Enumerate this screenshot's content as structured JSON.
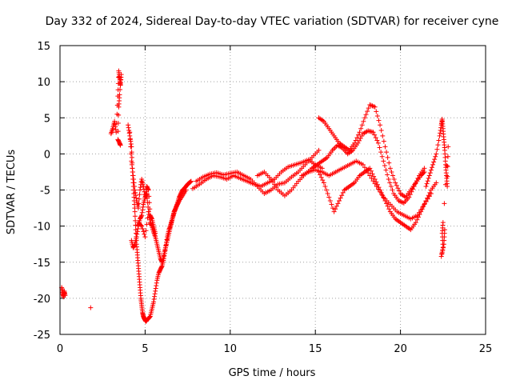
{
  "chart_data": {
    "type": "scatter",
    "title": "Day 332 of 2024, Sidereal Day-to-day VTEC variation (SDTVAR) for receiver cyne",
    "xlabel": "GPS time / hours",
    "ylabel": "SDTVAR / TECUs",
    "xlim": [
      0,
      25
    ],
    "ylim": [
      -25,
      15
    ],
    "xticks": [
      "0",
      "5",
      "10",
      "15",
      "20",
      "25"
    ],
    "yticks": [
      "15",
      "10",
      "5",
      "0",
      "-5",
      "-10",
      "-15",
      "-20",
      "-25"
    ],
    "grid": true,
    "marker": "+",
    "color": "#ff0000",
    "series": [
      {
        "name": "early",
        "x": [
          0.1,
          0.15,
          0.2,
          0.25,
          0.3,
          1.8
        ],
        "y": [
          -18.5,
          -19.2,
          -19.8,
          -19.0,
          -19.6,
          -21.3
        ]
      },
      {
        "name": "spike",
        "x": [
          3.0,
          3.1,
          3.2,
          3.3,
          3.4,
          3.45,
          3.5,
          3.55,
          3.6,
          3.5,
          3.45,
          3.4,
          3.5,
          3.55
        ],
        "y": [
          2.8,
          3.5,
          4.5,
          3.0,
          8.0,
          11.5,
          10.5,
          9.5,
          11.0,
          8.2,
          6.5,
          2.0,
          1.5,
          1.2
        ]
      },
      {
        "name": "dip",
        "x": [
          4.0,
          4.1,
          4.2,
          4.25,
          4.3,
          4.35,
          4.4,
          4.45,
          4.5,
          4.55,
          4.6,
          4.65,
          4.7,
          4.75,
          4.8,
          4.85,
          4.9,
          4.95,
          5.0,
          5.05,
          5.1,
          5.2,
          5.3,
          5.4,
          5.5,
          5.6,
          5.7,
          5.8,
          5.9,
          6.0,
          6.1,
          6.2,
          6.3,
          6.4,
          6.5,
          6.6,
          6.7,
          6.8,
          6.9,
          7.0,
          7.1,
          7.2,
          7.3,
          7.4,
          7.5,
          7.6,
          7.7
        ],
        "y": [
          4.0,
          2.5,
          1.0,
          -2.0,
          -4.0,
          -6.0,
          -8.0,
          -10.5,
          -12.5,
          -14.0,
          -15.5,
          -17.0,
          -18.5,
          -20.0,
          -21.0,
          -22.0,
          -22.5,
          -22.8,
          -23.0,
          -23.2,
          -23.0,
          -22.8,
          -22.5,
          -21.5,
          -20.5,
          -19.0,
          -17.5,
          -16.5,
          -16.0,
          -15.5,
          -14.5,
          -13.0,
          -11.5,
          -10.5,
          -9.8,
          -9.0,
          -8.2,
          -7.5,
          -6.8,
          -6.0,
          -5.5,
          -5.0,
          -4.8,
          -4.5,
          -4.2,
          -4.0,
          -3.8
        ]
      },
      {
        "name": "dip-upper-branch",
        "x": [
          4.2,
          4.3,
          4.4,
          4.5,
          4.6,
          4.7,
          4.8,
          4.9,
          5.0,
          5.1,
          5.2,
          5.3,
          5.4,
          5.5,
          5.6,
          5.7,
          5.8,
          5.9,
          6.0,
          6.1,
          6.2,
          6.3,
          6.4,
          6.5,
          6.6,
          6.7,
          6.8,
          6.9,
          7.0,
          7.2,
          7.4
        ],
        "y": [
          -12.0,
          -13.0,
          -12.5,
          -11.5,
          -10.0,
          -9.0,
          -8.5,
          -7.0,
          -6.0,
          -5.5,
          -8.0,
          -9.5,
          -10.0,
          -10.8,
          -11.5,
          -12.5,
          -13.5,
          -14.5,
          -15.0,
          -14.0,
          -13.0,
          -12.0,
          -11.0,
          -10.0,
          -9.0,
          -8.0,
          -7.5,
          -7.0,
          -6.5,
          -5.8,
          -5.0
        ]
      },
      {
        "name": "scatter-near-4h",
        "x": [
          4.1,
          4.2,
          4.3,
          4.4,
          4.5,
          4.6,
          4.7,
          4.8,
          4.9,
          5.0,
          5.1,
          5.2,
          5.3,
          5.4,
          5.5,
          5.6,
          4.6,
          4.8,
          5.0,
          5.2
        ],
        "y": [
          3.0,
          -1.0,
          -3.0,
          -5.0,
          -6.5,
          -7.5,
          -5.0,
          -3.5,
          -4.5,
          -6.0,
          -4.5,
          -5.0,
          -8.5,
          -9.0,
          -10.0,
          -11.0,
          -9.5,
          -10.0,
          -11.5,
          -8.0
        ]
      },
      {
        "name": "mid-day-band-a",
        "x": [
          7.8,
          8.2,
          8.6,
          9.0,
          9.4,
          9.8,
          10.2,
          10.6,
          11.0,
          11.4,
          11.8,
          12.2,
          12.6,
          13.0,
          13.4,
          13.8,
          14.2,
          14.6,
          15.0,
          15.4
        ],
        "y": [
          -4.8,
          -4.2,
          -3.5,
          -3.0,
          -3.2,
          -3.5,
          -3.0,
          -3.4,
          -3.8,
          -4.2,
          -4.5,
          -4.0,
          -3.5,
          -2.5,
          -1.8,
          -1.5,
          -1.2,
          -0.8,
          -1.5,
          -2.0
        ]
      },
      {
        "name": "mid-day-band-b",
        "x": [
          8.0,
          8.4,
          8.8,
          9.2,
          9.6,
          10.0,
          10.4,
          10.8,
          11.2,
          11.6,
          12.0,
          12.4,
          12.8,
          13.2,
          13.6,
          14.0,
          14.4,
          14.8,
          15.2
        ],
        "y": [
          -3.8,
          -3.2,
          -2.8,
          -2.6,
          -2.9,
          -2.7,
          -2.5,
          -3.0,
          -3.5,
          -4.5,
          -5.5,
          -5.0,
          -4.2,
          -4.0,
          -3.2,
          -2.5,
          -1.5,
          -0.5,
          0.5
        ]
      },
      {
        "name": "mid-day-band-c",
        "x": [
          11.6,
          12.0,
          12.4,
          12.8,
          13.2,
          13.6,
          14.0,
          14.4,
          14.8
        ],
        "y": [
          -3.0,
          -2.5,
          -3.5,
          -5.0,
          -5.8,
          -5.0,
          -3.8,
          -2.8,
          -2.0
        ]
      },
      {
        "name": "afternoon-rise",
        "x": [
          15.2,
          15.5,
          15.8,
          16.1,
          16.4,
          16.7,
          17.0,
          17.3,
          17.6,
          17.9,
          18.2,
          18.5,
          18.8,
          19.1,
          19.4,
          19.7,
          20.0,
          20.3,
          20.6,
          20.9,
          21.2,
          21.4
        ],
        "y": [
          5.0,
          4.5,
          3.5,
          2.5,
          1.5,
          1.0,
          0.5,
          1.5,
          3.0,
          5.0,
          6.8,
          6.5,
          4.0,
          1.0,
          -2.0,
          -4.0,
          -5.5,
          -6.0,
          -5.0,
          -4.0,
          -3.0,
          -2.5
        ]
      },
      {
        "name": "afternoon-band-2",
        "x": [
          14.8,
          15.1,
          15.4,
          15.7,
          16.0,
          16.3,
          16.6,
          16.9,
          17.2,
          17.5,
          17.8,
          18.1,
          18.4,
          18.7,
          19.0,
          19.3,
          19.6,
          19.9,
          20.2,
          20.5,
          20.8,
          21.1,
          21.4
        ],
        "y": [
          -2.0,
          -1.5,
          -1.0,
          -0.5,
          0.5,
          1.2,
          0.8,
          0.0,
          0.5,
          1.5,
          2.8,
          3.2,
          3.0,
          1.5,
          -1.0,
          -3.5,
          -5.5,
          -6.5,
          -6.8,
          -6.0,
          -4.5,
          -3.0,
          -2.0
        ]
      },
      {
        "name": "afternoon-band-3",
        "x": [
          14.2,
          14.6,
          15.0,
          15.4,
          15.8,
          16.2,
          16.6,
          17.0,
          17.4,
          17.8,
          18.2,
          18.6,
          19.0,
          19.4,
          19.8,
          20.2,
          20.6,
          21.0,
          21.4,
          21.8
        ],
        "y": [
          -3.0,
          -2.5,
          -2.2,
          -2.5,
          -3.0,
          -2.5,
          -2.0,
          -1.5,
          -1.0,
          -1.5,
          -3.0,
          -4.5,
          -6.0,
          -7.0,
          -8.0,
          -8.5,
          -9.0,
          -8.5,
          -7.0,
          -5.5
        ]
      },
      {
        "name": "afternoon-band-4",
        "x": [
          15.2,
          15.5,
          15.8,
          16.1,
          16.4,
          16.7,
          17.0,
          17.3,
          17.6,
          17.9,
          18.2,
          18.5,
          18.8,
          19.1,
          19.4,
          19.7,
          20.0,
          20.3,
          20.6,
          20.9,
          21.2,
          21.5,
          21.8,
          22.1
        ],
        "y": [
          -2.5,
          -4.0,
          -6.0,
          -8.0,
          -6.5,
          -5.0,
          -4.5,
          -4.0,
          -3.0,
          -2.5,
          -2.0,
          -3.5,
          -5.0,
          -6.5,
          -8.0,
          -9.0,
          -9.5,
          -10.0,
          -10.5,
          -9.5,
          -8.0,
          -6.5,
          -5.0,
          -4.0
        ]
      },
      {
        "name": "late-spike",
        "x": [
          21.5,
          21.7,
          21.9,
          22.1,
          22.3,
          22.4,
          22.45,
          22.5,
          22.55,
          22.6,
          22.65,
          22.7,
          22.75,
          22.8,
          22.5,
          22.45,
          22.5,
          22.4,
          22.55,
          22.6
        ],
        "y": [
          -4.5,
          -3.0,
          -1.5,
          0.0,
          2.5,
          4.0,
          4.8,
          3.5,
          2.0,
          0.5,
          -1.5,
          -3.0,
          -4.5,
          1.0,
          -9.5,
          -11.0,
          -13.0,
          -14.2,
          -12.5,
          -10.5
        ]
      }
    ]
  }
}
